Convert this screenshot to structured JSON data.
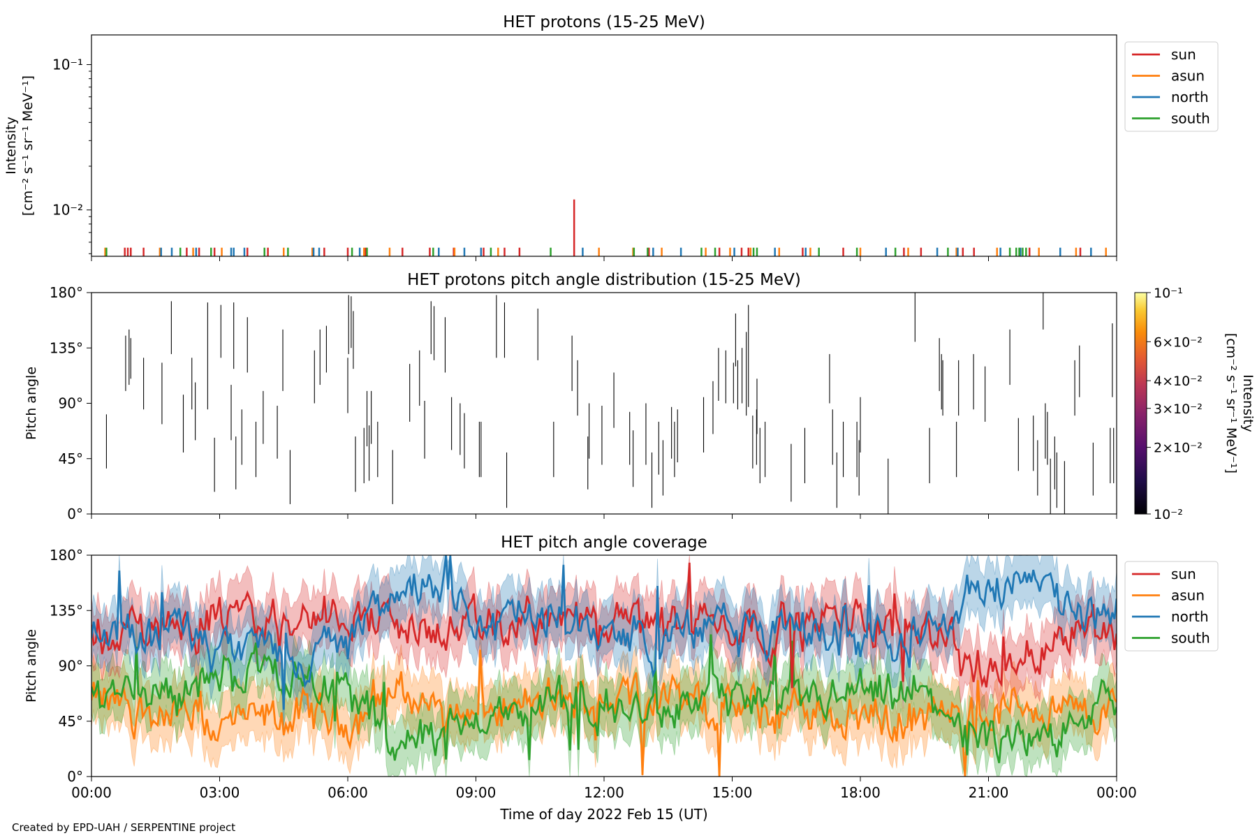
{
  "credit": "Created by EPD-UAH / SERPENTINE project",
  "colors": {
    "sun": "#d62728",
    "asun": "#ff7f0e",
    "north": "#1f77b4",
    "south": "#2ca02c"
  },
  "time_ticks": [
    "00:00",
    "03:00",
    "06:00",
    "09:00",
    "12:00",
    "15:00",
    "18:00",
    "21:00",
    "00:00"
  ],
  "chart_data": [
    {
      "type": "line",
      "title": "HET protons (15-25 MeV)",
      "xlabel": "",
      "ylabel_line1": "Intensity",
      "ylabel_line2": "[cm⁻² s⁻¹ sr⁻¹ MeV⁻¹]",
      "yscale": "log",
      "ylim": [
        0.0048,
        0.16
      ],
      "xlim_hours": [
        0,
        24
      ],
      "ytick_labels": [
        "10⁻²",
        "10⁻¹"
      ],
      "yticks": [
        0.01,
        0.1
      ],
      "legend_position": "upper right, outside axes",
      "series": [
        {
          "name": "sun",
          "color": "#d62728",
          "spike_times_h": [
            0.78,
            0.85,
            0.92,
            1.22,
            2.23,
            2.52,
            2.88,
            3.65,
            4.13,
            5.45,
            6.0,
            6.42,
            7.28,
            7.92,
            8.48,
            9.18,
            9.67,
            10.02,
            13.05,
            14.7,
            15.22,
            15.38,
            16.65,
            17.6,
            19.02,
            19.42,
            20.4,
            20.66,
            21.96,
            23.15
          ],
          "spike_values": [
            0.0055,
            0.0055,
            0.0055,
            0.0055,
            0.0055,
            0.0055,
            0.0055,
            0.0055,
            0.0055,
            0.0055,
            0.0055,
            0.0055,
            0.0055,
            0.0055,
            0.0055,
            0.0055,
            0.0055,
            0.0055,
            0.0055,
            0.0055,
            0.0055,
            0.0055,
            0.0055,
            0.0055,
            0.0055,
            0.0055,
            0.0055,
            0.0055,
            0.0055,
            0.0055
          ],
          "peak_time_h": 11.3,
          "peak_value": 0.0118
        },
        {
          "name": "asun",
          "color": "#ff7f0e",
          "spike_times_h": [
            0.32,
            1.6,
            2.38,
            3.05,
            4.5,
            5.17,
            6.38,
            6.98,
            8.5,
            9.52,
            11.88,
            12.68,
            13.35,
            14.38,
            14.95,
            15.43,
            16.1,
            16.83,
            18.0,
            19.12,
            20.25,
            21.2,
            22.18,
            23.05,
            23.75
          ],
          "spike_values": [
            0.0055,
            0.0055,
            0.0055,
            0.0055,
            0.0055,
            0.0055,
            0.0055,
            0.0055,
            0.0055,
            0.0055,
            0.0055,
            0.0055,
            0.0055,
            0.0055,
            0.0055,
            0.0055,
            0.0055,
            0.0055,
            0.0055,
            0.0055,
            0.0055,
            0.0055,
            0.0055,
            0.0055,
            0.0055
          ]
        },
        {
          "name": "north",
          "color": "#1f77b4",
          "spike_times_h": [
            1.63,
            1.88,
            2.45,
            3.27,
            3.33,
            3.58,
            5.2,
            5.33,
            6.28,
            8.13,
            8.73,
            9.12,
            11.5,
            13.15,
            13.8,
            15.05,
            16.0,
            16.72,
            18.6,
            19.8,
            20.28,
            21.28,
            21.75,
            22.68,
            23.4
          ],
          "spike_values": [
            0.0055,
            0.0055,
            0.0055,
            0.0055,
            0.0055,
            0.0055,
            0.0055,
            0.0055,
            0.0055,
            0.0055,
            0.0055,
            0.0055,
            0.0055,
            0.0055,
            0.0055,
            0.0055,
            0.0055,
            0.0055,
            0.0055,
            0.0055,
            0.0055,
            0.0055,
            0.0055,
            0.0055,
            0.0055
          ]
        },
        {
          "name": "south",
          "color": "#2ca02c",
          "spike_times_h": [
            0.35,
            2.08,
            2.8,
            4.05,
            4.6,
            6.1,
            6.45,
            8.0,
            9.35,
            10.75,
            12.7,
            13.02,
            14.28,
            14.6,
            15.5,
            15.58,
            17.03,
            17.92,
            18.82,
            20.05,
            21.5,
            21.65,
            21.72,
            21.8,
            21.88
          ],
          "spike_values": [
            0.0055,
            0.0055,
            0.0055,
            0.0055,
            0.0055,
            0.0055,
            0.0055,
            0.0055,
            0.0055,
            0.0055,
            0.0055,
            0.0055,
            0.0055,
            0.0055,
            0.0055,
            0.0055,
            0.0055,
            0.0055,
            0.0055,
            0.0055,
            0.0055,
            0.0055,
            0.0055,
            0.0055,
            0.0055
          ]
        }
      ]
    },
    {
      "type": "heatmap",
      "title": "HET protons pitch angle distribution (15-25 MeV)",
      "ylabel": "Pitch angle",
      "ylim": [
        0,
        180
      ],
      "xlim_hours": [
        0,
        24
      ],
      "ytick_labels": [
        "0°",
        "45°",
        "90°",
        "135°",
        "180°"
      ],
      "colorbar": {
        "label": "Intensity\n[cm⁻² s⁻¹ sr⁻¹ MeV⁻¹]",
        "scale": "log",
        "range": [
          0.01,
          0.1
        ],
        "colormap": "inferno",
        "tick_labels": [
          "10⁻²",
          "2×10⁻²",
          "3×10⁻²",
          "4×10⁻²",
          "6×10⁻²",
          "10⁻¹"
        ],
        "ticks": [
          0.01,
          0.02,
          0.03,
          0.04,
          0.06,
          0.1
        ]
      },
      "segments": [
        [
          0.35,
          37,
          81
        ],
        [
          0.8,
          100,
          145
        ],
        [
          0.88,
          105,
          150
        ],
        [
          0.92,
          110,
          143
        ],
        [
          1.22,
          85,
          127
        ],
        [
          1.65,
          73,
          123
        ],
        [
          1.87,
          130,
          173
        ],
        [
          2.15,
          50,
          97
        ],
        [
          2.35,
          85,
          127
        ],
        [
          2.43,
          60,
          107
        ],
        [
          2.72,
          85,
          172
        ],
        [
          2.88,
          18,
          62
        ],
        [
          3.03,
          127,
          170
        ],
        [
          3.27,
          60,
          105
        ],
        [
          3.33,
          118,
          172
        ],
        [
          3.38,
          20,
          63
        ],
        [
          3.52,
          40,
          85
        ],
        [
          3.65,
          115,
          160
        ],
        [
          3.85,
          30,
          75
        ],
        [
          4.02,
          57,
          100
        ],
        [
          4.35,
          45,
          88
        ],
        [
          4.48,
          100,
          150
        ],
        [
          4.65,
          8,
          52
        ],
        [
          5.22,
          90,
          133
        ],
        [
          5.35,
          105,
          150
        ],
        [
          5.5,
          115,
          153
        ],
        [
          6.0,
          82,
          127
        ],
        [
          6.02,
          130,
          178
        ],
        [
          6.08,
          135,
          177
        ],
        [
          6.13,
          118,
          165
        ],
        [
          6.18,
          18,
          63
        ],
        [
          6.38,
          25,
          70
        ],
        [
          6.45,
          55,
          100
        ],
        [
          6.5,
          27,
          72
        ],
        [
          6.55,
          57,
          100
        ],
        [
          6.7,
          30,
          75
        ],
        [
          7.05,
          8,
          52
        ],
        [
          7.45,
          75,
          122
        ],
        [
          7.68,
          88,
          133
        ],
        [
          7.8,
          45,
          92
        ],
        [
          7.95,
          130,
          173
        ],
        [
          8.02,
          125,
          169
        ],
        [
          8.28,
          115,
          160
        ],
        [
          8.43,
          52,
          95
        ],
        [
          8.63,
          48,
          90
        ],
        [
          8.73,
          37,
          82
        ],
        [
          9.08,
          30,
          75
        ],
        [
          9.12,
          30,
          75
        ],
        [
          9.48,
          127,
          178
        ],
        [
          9.67,
          127,
          172
        ],
        [
          9.72,
          5,
          50
        ],
        [
          10.45,
          125,
          167
        ],
        [
          10.82,
          30,
          75
        ],
        [
          11.25,
          100,
          145
        ],
        [
          11.38,
          80,
          125
        ],
        [
          11.62,
          20,
          63
        ],
        [
          11.65,
          45,
          90
        ],
        [
          11.95,
          40,
          88
        ],
        [
          12.23,
          70,
          115
        ],
        [
          12.6,
          40,
          83
        ],
        [
          12.68,
          22,
          68
        ],
        [
          12.98,
          40,
          90
        ],
        [
          13.12,
          5,
          50
        ],
        [
          13.28,
          32,
          75
        ],
        [
          13.38,
          15,
          60
        ],
        [
          13.58,
          45,
          87
        ],
        [
          13.65,
          30,
          75
        ],
        [
          13.72,
          42,
          85
        ],
        [
          14.33,
          50,
          95
        ],
        [
          14.55,
          65,
          108
        ],
        [
          14.68,
          92,
          135
        ],
        [
          14.85,
          90,
          133
        ],
        [
          15.03,
          90,
          123
        ],
        [
          15.08,
          120,
          163
        ],
        [
          15.13,
          85,
          125
        ],
        [
          15.23,
          90,
          135
        ],
        [
          15.33,
          80,
          148
        ],
        [
          15.38,
          87,
          170
        ],
        [
          15.48,
          37,
          80
        ],
        [
          15.57,
          40,
          85
        ],
        [
          15.58,
          65,
          110
        ],
        [
          15.65,
          25,
          70
        ],
        [
          15.77,
          30,
          75
        ],
        [
          16.7,
          25,
          70
        ],
        [
          16.38,
          10,
          57
        ],
        [
          17.28,
          90,
          130
        ],
        [
          17.35,
          40,
          85
        ],
        [
          17.45,
          5,
          50
        ],
        [
          17.6,
          30,
          75
        ],
        [
          17.92,
          30,
          75
        ],
        [
          17.97,
          15,
          60
        ],
        [
          18.0,
          50,
          95
        ],
        [
          18.65,
          0,
          45
        ],
        [
          19.28,
          140,
          180
        ],
        [
          19.62,
          25,
          70
        ],
        [
          19.85,
          100,
          143
        ],
        [
          19.9,
          85,
          130
        ],
        [
          19.93,
          80,
          125
        ],
        [
          20.25,
          30,
          75
        ],
        [
          20.3,
          80,
          125
        ],
        [
          20.65,
          85,
          130
        ],
        [
          20.92,
          75,
          120
        ],
        [
          21.5,
          105,
          150
        ],
        [
          21.7,
          35,
          78
        ],
        [
          22.05,
          35,
          80
        ],
        [
          22.15,
          15,
          60
        ],
        [
          22.28,
          150,
          180
        ],
        [
          22.33,
          45,
          90
        ],
        [
          22.38,
          40,
          83
        ],
        [
          22.45,
          0,
          45
        ],
        [
          22.55,
          20,
          63
        ],
        [
          22.6,
          5,
          50
        ],
        [
          22.78,
          0,
          43
        ],
        [
          23.02,
          80,
          125
        ],
        [
          23.13,
          95,
          137
        ],
        [
          23.45,
          15,
          58
        ],
        [
          23.85,
          25,
          70
        ],
        [
          23.9,
          95,
          155
        ],
        [
          23.93,
          25,
          70
        ]
      ]
    },
    {
      "type": "line",
      "title": "HET pitch angle coverage",
      "xlabel": "Time of day 2022 Feb 15 (UT)",
      "ylabel": "Pitch angle",
      "ylim": [
        0,
        180
      ],
      "xlim_hours": [
        0,
        24
      ],
      "ytick_labels": [
        "0°",
        "45°",
        "90°",
        "135°",
        "180°"
      ],
      "legend_position": "upper right, outside axes",
      "shaded_band_halfwidth_deg": 22,
      "series": [
        {
          "name": "sun",
          "color": "#d62728",
          "anchors_h": [
            0,
            1,
            2,
            3,
            4,
            5,
            6,
            7,
            8,
            9,
            10,
            11,
            12,
            13,
            14,
            15,
            16,
            17,
            18,
            19,
            20,
            20.5,
            21,
            22,
            23,
            24
          ],
          "values": [
            115,
            120,
            125,
            130,
            125,
            130,
            135,
            125,
            115,
            120,
            125,
            130,
            120,
            125,
            130,
            125,
            120,
            125,
            130,
            125,
            120,
            90,
            85,
            100,
            125,
            120
          ]
        },
        {
          "name": "asun",
          "color": "#ff7f0e",
          "anchors_h": [
            0,
            1,
            2,
            3,
            4,
            5,
            6,
            7,
            8,
            9,
            10,
            11,
            12,
            13,
            14,
            15,
            16,
            17,
            18,
            19,
            20,
            20.5,
            21,
            22,
            23,
            24
          ],
          "values": [
            60,
            55,
            50,
            40,
            45,
            50,
            45,
            70,
            60,
            50,
            55,
            60,
            65,
            70,
            60,
            55,
            50,
            55,
            50,
            45,
            50,
            35,
            50,
            60,
            50,
            55
          ]
        },
        {
          "name": "north",
          "color": "#1f77b4",
          "anchors_h": [
            0,
            1,
            2,
            3,
            4,
            5,
            6,
            7,
            8,
            9,
            10,
            11,
            12,
            13,
            14,
            15,
            16,
            17,
            18,
            19,
            20,
            20.5,
            21,
            22,
            23,
            24
          ],
          "values": [
            120,
            110,
            120,
            100,
            105,
            95,
            110,
            150,
            150,
            125,
            130,
            125,
            120,
            110,
            120,
            125,
            115,
            120,
            115,
            120,
            115,
            150,
            160,
            155,
            135,
            125
          ]
        },
        {
          "name": "south",
          "color": "#2ca02c",
          "anchors_h": [
            0,
            1,
            2,
            3,
            4,
            5,
            6,
            7,
            8,
            9,
            10,
            11,
            12,
            13,
            14,
            15,
            16,
            17,
            18,
            19,
            20,
            20.5,
            21,
            22,
            23,
            24
          ],
          "values": [
            70,
            75,
            70,
            80,
            90,
            80,
            70,
            30,
            30,
            50,
            50,
            60,
            55,
            50,
            60,
            65,
            55,
            60,
            65,
            60,
            60,
            30,
            25,
            25,
            55,
            55
          ]
        }
      ]
    }
  ]
}
